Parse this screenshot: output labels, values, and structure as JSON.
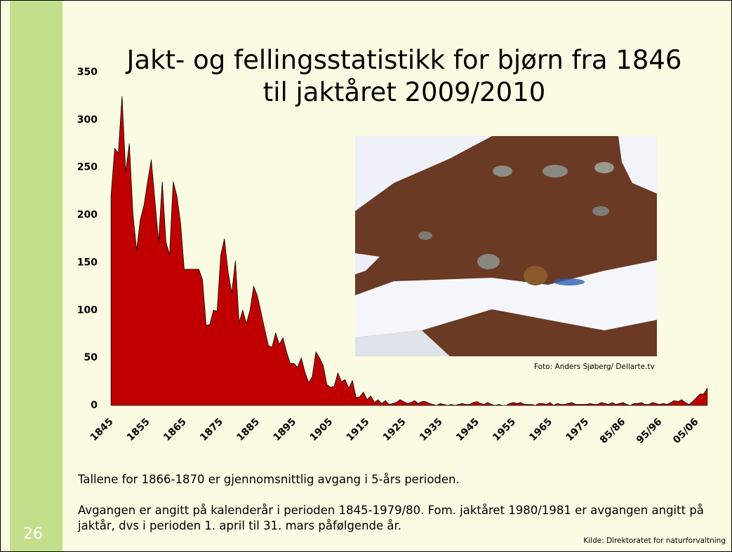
{
  "chart_data": {
    "type": "area",
    "title": "Jakt- og fellingsstatistikk for bjørn fra 1846 til jaktåret 2009/2010",
    "x": [
      1846,
      1847,
      1848,
      1849,
      1850,
      1851,
      1852,
      1853,
      1854,
      1855,
      1856,
      1857,
      1858,
      1859,
      1860,
      1861,
      1862,
      1863,
      1864,
      1865,
      1866,
      1867,
      1868,
      1869,
      1870,
      1871,
      1872,
      1873,
      1874,
      1875,
      1876,
      1877,
      1878,
      1879,
      1880,
      1881,
      1882,
      1883,
      1884,
      1885,
      1886,
      1887,
      1888,
      1889,
      1890,
      1891,
      1892,
      1893,
      1894,
      1895,
      1896,
      1897,
      1898,
      1899,
      1900,
      1901,
      1902,
      1903,
      1904,
      1905,
      1906,
      1907,
      1908,
      1909,
      1910,
      1911,
      1912,
      1913,
      1914,
      1915,
      1916,
      1917,
      1918,
      1919,
      1920,
      1921,
      1922,
      1923,
      1924,
      1925,
      1926,
      1927,
      1928,
      1929,
      1930,
      1931,
      1932,
      1933,
      1934,
      1935,
      1936,
      1937,
      1938,
      1939,
      1940,
      1941,
      1942,
      1943,
      1944,
      1945,
      1946,
      1947,
      1948,
      1949,
      1950,
      1951,
      1952,
      1953,
      1954,
      1955,
      1956,
      1957,
      1958,
      1959,
      1960,
      1961,
      1962,
      1963,
      1964,
      1965,
      1966,
      1967,
      1968,
      1969,
      1970,
      1971,
      1972,
      1973,
      1974,
      1975,
      1976,
      1977,
      1978,
      1979,
      1980,
      1981,
      1982,
      1983,
      1984,
      1985,
      1986,
      1987,
      1988,
      1989,
      1990,
      1991,
      1992,
      1993,
      1994,
      1995,
      1996,
      1997,
      1998,
      1999,
      2000,
      2001,
      2002,
      2003,
      2004,
      2005,
      2006,
      2007,
      2008,
      2009
    ],
    "values": [
      220,
      270,
      265,
      325,
      245,
      275,
      200,
      163,
      195,
      210,
      235,
      258,
      215,
      172,
      235,
      172,
      158,
      235,
      220,
      192,
      143,
      143,
      143,
      143,
      143,
      132,
      84,
      85,
      100,
      99,
      158,
      175,
      140,
      118,
      152,
      87,
      100,
      86,
      100,
      125,
      115,
      98,
      80,
      63,
      61,
      76,
      64,
      71,
      56,
      44,
      44,
      40,
      50,
      35,
      24,
      30,
      56,
      50,
      42,
      22,
      19,
      20,
      34,
      25,
      27,
      18,
      26,
      8,
      9,
      14,
      6,
      10,
      3,
      6,
      2,
      5,
      1,
      2,
      3,
      6,
      4,
      2,
      3,
      5,
      2,
      4,
      4,
      2,
      1,
      0,
      2,
      1,
      0,
      1,
      0,
      1,
      2,
      1,
      1,
      3,
      4,
      2,
      1,
      3,
      1,
      0,
      1,
      0,
      0,
      2,
      3,
      2,
      3,
      1,
      1,
      1,
      0,
      2,
      2,
      1,
      3,
      0,
      2,
      1,
      1,
      2,
      3,
      1,
      1,
      1,
      1,
      2,
      1,
      1,
      3,
      2,
      1,
      3,
      1,
      2,
      3,
      1,
      0,
      2,
      2,
      3,
      1,
      1,
      3,
      2,
      1,
      2,
      1,
      3,
      5,
      4,
      6,
      3,
      1,
      4,
      8,
      12,
      12,
      18
    ],
    "color": "#c00000",
    "xlim": [
      1845,
      2010
    ],
    "xticks": [
      1845,
      1855,
      1865,
      1875,
      1885,
      1895,
      1905,
      1915,
      1925,
      1935,
      1945,
      1955,
      1965,
      1975,
      {
        "value": 1985,
        "label": "85/86"
      },
      {
        "value": 1995,
        "label": "95/96"
      },
      {
        "value": 2005,
        "label": "05/06"
      }
    ],
    "ylim": [
      0,
      350
    ],
    "yticks": [
      0,
      50,
      100,
      150,
      200,
      250,
      300,
      350
    ],
    "grid": false
  },
  "slide": {
    "number": "26",
    "photo_credit": "Foto: Anders Sjøberg/ Dellarte.tv",
    "notes": [
      "Tallene for  1866-1870 er gjennomsnittlig avgang i 5-års perioden.",
      "Avgangen er angitt på kalenderår i perioden 1845-1979/80. Fom. jaktåret 1980/1981 er avgangen angitt på jaktår, dvs i perioden 1. april til 31. mars påfølgende år."
    ],
    "source": "Kilde: Direktoratet for naturforvaltning"
  }
}
